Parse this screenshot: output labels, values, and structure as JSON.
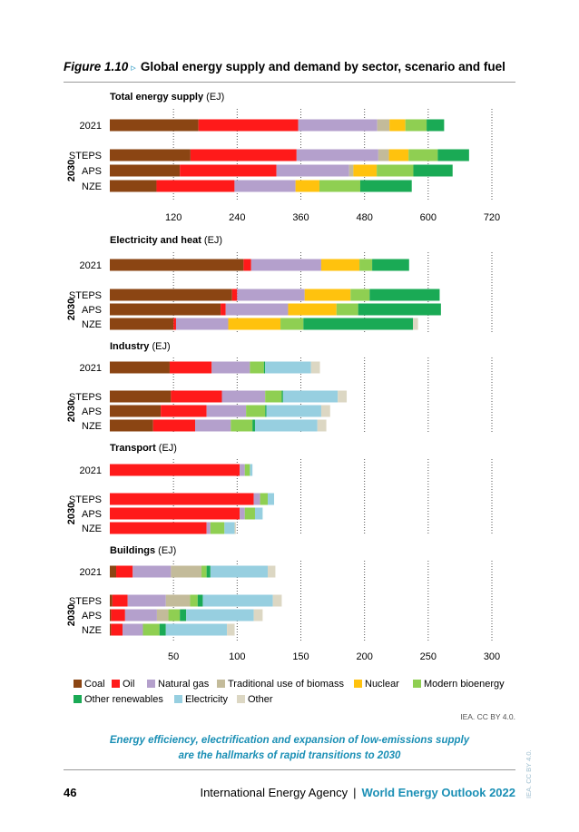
{
  "figure": {
    "number": "Figure 1.10",
    "title": "Global energy supply and demand by sector, scenario and fuel"
  },
  "credit": "IEA. CC BY 4.0.",
  "caption_lines": [
    "Energy efficiency, electrification and expansion of low-emissions supply",
    "are the hallmarks of rapid transitions to 2030"
  ],
  "footer": {
    "page_number": "46",
    "organization": "International Energy Agency",
    "separator": "|",
    "publication": "World Energy Outlook 2022"
  },
  "side_credit": "IEA. CC BY 4.0.",
  "year_group_label": "2030",
  "fuel_colors": {
    "Coal": "#8b4513",
    "Oil": "#ff1a1a",
    "Natural gas": "#b4a0cc",
    "Traditional use of biomass": "#c3bb9a",
    "Nuclear": "#ffc20e",
    "Modern bioenergy": "#8fcf52",
    "Other renewables": "#1aaa55",
    "Electricity": "#97cfe0",
    "Other": "#dcd7c3"
  },
  "chart_data": [
    {
      "type": "bar",
      "orientation": "horizontal",
      "stacked": true,
      "title": "Total energy supply",
      "unit": "(EJ)",
      "xlim": [
        0,
        720
      ],
      "xticks": [
        120,
        240,
        360,
        480,
        600,
        720
      ],
      "grid": true,
      "categories": [
        "2021",
        "STEPS",
        "APS",
        "NZE"
      ],
      "series": [
        {
          "name": "Coal",
          "values": [
            167,
            152,
            132,
            88
          ]
        },
        {
          "name": "Oil",
          "values": [
            188,
            200,
            182,
            147
          ]
        },
        {
          "name": "Natural gas",
          "values": [
            149,
            154,
            137,
            115
          ]
        },
        {
          "name": "Traditional use of biomass",
          "values": [
            23,
            20,
            8,
            0
          ]
        },
        {
          "name": "Nuclear",
          "values": [
            30,
            37,
            44,
            45
          ]
        },
        {
          "name": "Modern bioenergy",
          "values": [
            40,
            55,
            69,
            77
          ]
        },
        {
          "name": "Other renewables",
          "values": [
            33,
            59,
            74,
            97
          ]
        }
      ]
    },
    {
      "type": "bar",
      "orientation": "horizontal",
      "stacked": true,
      "title": "Electricity and heat",
      "unit": "(EJ)",
      "xlim": [
        0,
        300
      ],
      "grid": true,
      "categories": [
        "2021",
        "STEPS",
        "APS",
        "NZE"
      ],
      "series": [
        {
          "name": "Coal",
          "values": [
            105,
            96,
            87,
            50
          ]
        },
        {
          "name": "Oil",
          "values": [
            6,
            4,
            4,
            2
          ]
        },
        {
          "name": "Natural gas",
          "values": [
            55,
            53,
            49,
            41
          ]
        },
        {
          "name": "Nuclear",
          "values": [
            30,
            36,
            38,
            41
          ]
        },
        {
          "name": "Modern bioenergy",
          "values": [
            10,
            15,
            17,
            18
          ]
        },
        {
          "name": "Other renewables",
          "values": [
            29,
            55,
            65,
            86
          ]
        },
        {
          "name": "Other",
          "values": [
            0,
            0,
            0,
            4
          ]
        }
      ]
    },
    {
      "type": "bar",
      "orientation": "horizontal",
      "stacked": true,
      "title": "Industry",
      "unit": "(EJ)",
      "xlim": [
        0,
        300
      ],
      "grid": true,
      "categories": [
        "2021",
        "STEPS",
        "APS",
        "NZE"
      ],
      "series": [
        {
          "name": "Coal",
          "values": [
            47,
            48,
            40,
            34
          ]
        },
        {
          "name": "Oil",
          "values": [
            33,
            40,
            36,
            33
          ]
        },
        {
          "name": "Natural gas",
          "values": [
            30,
            34,
            31,
            28
          ]
        },
        {
          "name": "Modern bioenergy",
          "values": [
            11,
            13,
            15,
            17
          ]
        },
        {
          "name": "Other renewables",
          "values": [
            1,
            1,
            1,
            2
          ]
        },
        {
          "name": "Electricity",
          "values": [
            36,
            43,
            43,
            49
          ]
        },
        {
          "name": "Other",
          "values": [
            7,
            7,
            7,
            7
          ]
        }
      ]
    },
    {
      "type": "bar",
      "orientation": "horizontal",
      "stacked": true,
      "title": "Transport",
      "unit": "(EJ)",
      "xlim": [
        0,
        300
      ],
      "grid": true,
      "categories": [
        "2021",
        "STEPS",
        "APS",
        "NZE"
      ],
      "series": [
        {
          "name": "Oil",
          "values": [
            102,
            113,
            102,
            76
          ]
        },
        {
          "name": "Natural gas",
          "values": [
            4,
            5,
            4,
            3
          ]
        },
        {
          "name": "Modern bioenergy",
          "values": [
            4,
            6,
            8,
            11
          ]
        },
        {
          "name": "Electricity",
          "values": [
            2,
            5,
            6,
            8
          ]
        },
        {
          "name": "Other",
          "values": [
            0,
            0,
            0,
            1
          ]
        }
      ]
    },
    {
      "type": "bar",
      "orientation": "horizontal",
      "stacked": true,
      "title": "Buildings",
      "unit": "(EJ)",
      "xlim": [
        0,
        300
      ],
      "xticks": [
        50,
        100,
        150,
        200,
        250,
        300
      ],
      "grid": true,
      "categories": [
        "2021",
        "STEPS",
        "APS",
        "NZE"
      ],
      "series": [
        {
          "name": "Coal",
          "values": [
            5,
            2,
            1,
            1
          ]
        },
        {
          "name": "Oil",
          "values": [
            13,
            12,
            11,
            9
          ]
        },
        {
          "name": "Natural gas",
          "values": [
            30,
            30,
            25,
            16
          ]
        },
        {
          "name": "Traditional use of biomass",
          "values": [
            24,
            19,
            9,
            0
          ]
        },
        {
          "name": "Modern bioenergy",
          "values": [
            4,
            6,
            9,
            13
          ]
        },
        {
          "name": "Other renewables",
          "values": [
            3,
            4,
            5,
            5
          ]
        },
        {
          "name": "Electricity",
          "values": [
            45,
            55,
            53,
            48
          ]
        },
        {
          "name": "Other",
          "values": [
            6,
            7,
            7,
            6
          ]
        }
      ]
    }
  ],
  "legend": [
    "Coal",
    "Oil",
    "Natural gas",
    "Traditional use of biomass",
    "Nuclear",
    "Modern bioenergy",
    "Other renewables",
    "Electricity",
    "Other"
  ]
}
